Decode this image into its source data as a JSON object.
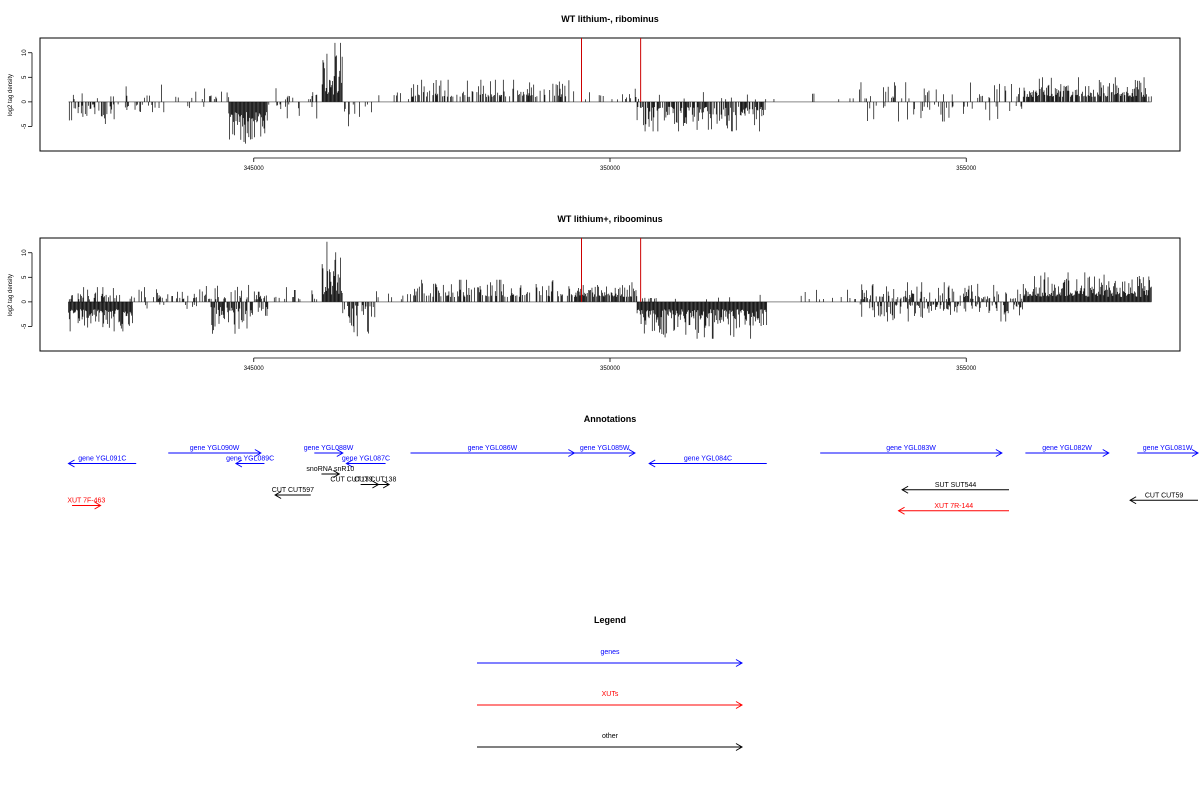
{
  "chart_data": [
    {
      "type": "bar",
      "title": "WT lithium-, ribominus",
      "ylabel": "log2 tag density",
      "xlabel": "",
      "x_ticks": [
        345000,
        350000,
        355000
      ],
      "y_ticks": [
        -5,
        0,
        5,
        10
      ],
      "xlim": [
        342000,
        358000
      ],
      "ylim": [
        -10,
        13
      ],
      "baseline_range": [
        342400,
        357600
      ],
      "highlight_color": "#cc0000",
      "highlight_lines": [
        349600,
        350430
      ],
      "highlight_height": 13,
      "regions": [
        {
          "start": 342400,
          "end": 343300,
          "sign": -1,
          "density": 0.45,
          "min": 0.5,
          "max": 4.5
        },
        {
          "start": 342400,
          "end": 343300,
          "sign": 1,
          "density": 0.12,
          "min": 0.5,
          "max": 3.5
        },
        {
          "start": 343300,
          "end": 344300,
          "sign": 1,
          "density": 0.1,
          "min": 0.5,
          "max": 3.5
        },
        {
          "start": 343300,
          "end": 344300,
          "sign": -1,
          "density": 0.12,
          "min": 0.5,
          "max": 3
        },
        {
          "start": 344300,
          "end": 344650,
          "sign": 1,
          "density": 0.2,
          "min": 0.5,
          "max": 4
        },
        {
          "start": 344650,
          "end": 345200,
          "sign": -1,
          "density": 1.0,
          "min": 2,
          "max": 8.5
        },
        {
          "start": 345200,
          "end": 345900,
          "sign": 1,
          "density": 0.12,
          "min": 0.5,
          "max": 3
        },
        {
          "start": 345200,
          "end": 345900,
          "sign": -1,
          "density": 0.15,
          "min": 0.5,
          "max": 3.5
        },
        {
          "start": 345960,
          "end": 346250,
          "sign": 1,
          "density": 1.0,
          "min": 1.5,
          "max": 12
        },
        {
          "start": 346250,
          "end": 346700,
          "sign": -1,
          "density": 0.25,
          "min": 0.5,
          "max": 5
        },
        {
          "start": 346700,
          "end": 347200,
          "sign": 1,
          "density": 0.12,
          "min": 0.5,
          "max": 2.5
        },
        {
          "start": 347200,
          "end": 349500,
          "sign": 1,
          "density": 0.5,
          "min": 1,
          "max": 4.5
        },
        {
          "start": 349500,
          "end": 350380,
          "sign": 1,
          "density": 0.2,
          "min": 0.5,
          "max": 3
        },
        {
          "start": 350380,
          "end": 352200,
          "sign": -1,
          "density": 0.75,
          "min": 1,
          "max": 6
        },
        {
          "start": 350400,
          "end": 352200,
          "sign": 1,
          "density": 0.06,
          "min": 0.5,
          "max": 2
        },
        {
          "start": 352200,
          "end": 353500,
          "sign": 1,
          "density": 0.04,
          "min": 0.5,
          "max": 2
        },
        {
          "start": 353500,
          "end": 355800,
          "sign": 1,
          "density": 0.18,
          "min": 0.5,
          "max": 4
        },
        {
          "start": 353500,
          "end": 355800,
          "sign": -1,
          "density": 0.2,
          "min": 0.5,
          "max": 4
        },
        {
          "start": 355800,
          "end": 357600,
          "sign": 1,
          "density": 0.8,
          "min": 1,
          "max": 5
        }
      ]
    },
    {
      "type": "bar",
      "title": "WT lithium+, riboominus",
      "ylabel": "log2 tag density",
      "xlabel": "",
      "x_ticks": [
        345000,
        350000,
        355000
      ],
      "y_ticks": [
        -5,
        0,
        5,
        10
      ],
      "xlim": [
        342000,
        358000
      ],
      "ylim": [
        -10,
        13
      ],
      "baseline_range": [
        342400,
        357600
      ],
      "highlight_color": "#cc0000",
      "highlight_lines": [
        349600,
        350430
      ],
      "highlight_height": 13,
      "regions": [
        {
          "start": 342400,
          "end": 343300,
          "sign": -1,
          "density": 1.0,
          "min": 1.5,
          "max": 6
        },
        {
          "start": 342400,
          "end": 343300,
          "sign": 1,
          "density": 0.35,
          "min": 0.5,
          "max": 3
        },
        {
          "start": 343300,
          "end": 344300,
          "sign": 1,
          "density": 0.3,
          "min": 0.5,
          "max": 3
        },
        {
          "start": 343300,
          "end": 344300,
          "sign": -1,
          "density": 0.1,
          "min": 0.5,
          "max": 2
        },
        {
          "start": 344300,
          "end": 345300,
          "sign": 1,
          "density": 0.45,
          "min": 0.5,
          "max": 4.5
        },
        {
          "start": 344400,
          "end": 345200,
          "sign": -1,
          "density": 0.7,
          "min": 1,
          "max": 6.5
        },
        {
          "start": 345300,
          "end": 345900,
          "sign": 1,
          "density": 0.2,
          "min": 0.5,
          "max": 3
        },
        {
          "start": 345960,
          "end": 346250,
          "sign": 1,
          "density": 1.0,
          "min": 1.5,
          "max": 13
        },
        {
          "start": 346250,
          "end": 346700,
          "sign": -1,
          "density": 0.45,
          "min": 0.5,
          "max": 7
        },
        {
          "start": 346700,
          "end": 347200,
          "sign": 1,
          "density": 0.25,
          "min": 0.5,
          "max": 3
        },
        {
          "start": 347200,
          "end": 349500,
          "sign": 1,
          "density": 0.5,
          "min": 1,
          "max": 4.5
        },
        {
          "start": 349500,
          "end": 350380,
          "sign": 1,
          "density": 0.8,
          "min": 1,
          "max": 4
        },
        {
          "start": 350380,
          "end": 352200,
          "sign": -1,
          "density": 1.0,
          "min": 1.5,
          "max": 7.5
        },
        {
          "start": 350400,
          "end": 352200,
          "sign": 1,
          "density": 0.1,
          "min": 0.5,
          "max": 2
        },
        {
          "start": 352200,
          "end": 353500,
          "sign": 1,
          "density": 0.08,
          "min": 0.5,
          "max": 2.5
        },
        {
          "start": 353500,
          "end": 355800,
          "sign": 1,
          "density": 0.4,
          "min": 0.5,
          "max": 4
        },
        {
          "start": 353500,
          "end": 355800,
          "sign": -1,
          "density": 0.4,
          "min": 0.5,
          "max": 4
        },
        {
          "start": 355800,
          "end": 357600,
          "sign": 1,
          "density": 1.0,
          "min": 1,
          "max": 6
        }
      ]
    }
  ],
  "annotations": {
    "title": "Annotations",
    "items": [
      {
        "label": "gene YGL091C",
        "color": "#0000ff",
        "start": 342400,
        "end": 343350,
        "strand": "-",
        "row": 1
      },
      {
        "label": "gene YGL090W",
        "color": "#0000ff",
        "start": 343800,
        "end": 345100,
        "strand": "+",
        "row": 0
      },
      {
        "label": "gene YGL089C",
        "color": "#0000ff",
        "start": 344750,
        "end": 345150,
        "strand": "-",
        "row": 1
      },
      {
        "label": "gene YGL088W",
        "color": "#0000ff",
        "start": 345850,
        "end": 346250,
        "strand": "+",
        "row": 0
      },
      {
        "label": "gene YGL087C",
        "color": "#0000ff",
        "start": 346300,
        "end": 346850,
        "strand": "-",
        "row": 1
      },
      {
        "label": "gene YGL086W",
        "color": "#0000ff",
        "start": 347200,
        "end": 349500,
        "strand": "+",
        "row": 0
      },
      {
        "label": "gene YGL085W",
        "color": "#0000ff",
        "start": 349500,
        "end": 350350,
        "strand": "+",
        "row": 0
      },
      {
        "label": "gene YGL084C",
        "color": "#0000ff",
        "start": 350550,
        "end": 352200,
        "strand": "-",
        "row": 1
      },
      {
        "label": "gene YGL083W",
        "color": "#0000ff",
        "start": 352950,
        "end": 355500,
        "strand": "+",
        "row": 0
      },
      {
        "label": "gene YGL082W",
        "color": "#0000ff",
        "start": 355830,
        "end": 357000,
        "strand": "+",
        "row": 0
      },
      {
        "label": "gene YGL081W",
        "color": "#0000ff",
        "start": 357400,
        "end": 358500,
        "strand": "+",
        "row": 0
      },
      {
        "label": "snoRNA snR10",
        "color": "#000000",
        "start": 345950,
        "end": 346200,
        "strand": "+",
        "row": 2
      },
      {
        "label": "CUT CUT138",
        "color": "#000000",
        "start": 346510,
        "end": 346900,
        "strand": "+",
        "row": 3
      },
      {
        "label": "CUT CUT139",
        "color": "#000000",
        "start": 346500,
        "end": 346750,
        "strand": "+",
        "row": 3,
        "label_offset": -18
      },
      {
        "label": "CUT CUT597",
        "color": "#000000",
        "start": 345300,
        "end": 345800,
        "strand": "-",
        "row": 4
      },
      {
        "label": "XUT 7F-463",
        "color": "#ff0000",
        "start": 342450,
        "end": 342850,
        "strand": "+",
        "row": 5
      },
      {
        "label": "SUT SUT544",
        "color": "#000000",
        "start": 354100,
        "end": 355600,
        "strand": "-",
        "row": 3.5
      },
      {
        "label": "XUT 7R-144",
        "color": "#ff0000",
        "start": 354050,
        "end": 355600,
        "strand": "-",
        "row": 5.5
      },
      {
        "label": "CUT CUT59",
        "color": "#000000",
        "start": 357300,
        "end": 358400,
        "strand": "-",
        "row": 4.5
      }
    ]
  },
  "legend": {
    "title": "Legend",
    "entries": [
      {
        "label": "genes",
        "color": "#0000ff"
      },
      {
        "label": "XUTs",
        "color": "#ff0000"
      },
      {
        "label": "other",
        "color": "#000000"
      }
    ]
  }
}
